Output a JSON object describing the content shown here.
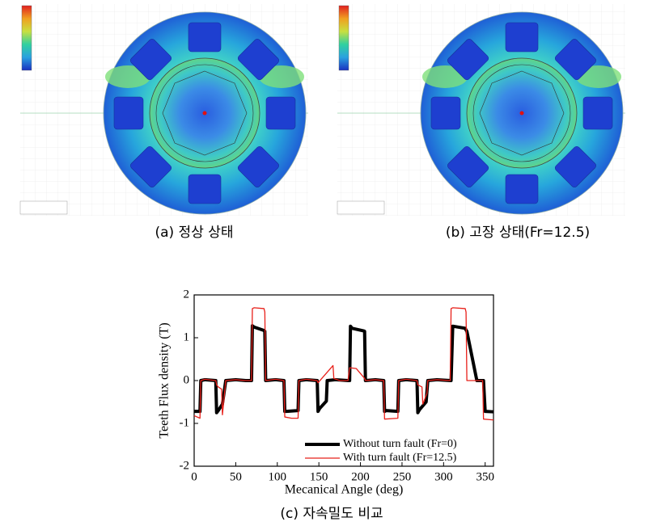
{
  "panels": [
    {
      "caption": "(a) 정상 상태"
    },
    {
      "caption": "(b) 고장 상태(Fr=12.5)"
    }
  ],
  "chart_data": {
    "type": "line",
    "caption": "(c) 자속밀도 비교",
    "xlabel": "Mecanical Angle (deg)",
    "ylabel": "Teeth Flux density (T)",
    "xlim": [
      0,
      360
    ],
    "xticks": [
      0,
      50,
      100,
      150,
      200,
      250,
      300,
      350
    ],
    "ylim": [
      -2,
      2
    ],
    "yticks": [
      -2,
      -1,
      0,
      1,
      2
    ],
    "legend": "lower right",
    "series": [
      {
        "name": "Without turn fault (Fr=0)",
        "color": "#000000",
        "width": 4,
        "x": [
          0,
          7,
          8,
          13,
          26,
          27,
          29,
          34,
          38,
          50,
          62,
          69,
          70,
          72,
          84,
          85,
          86,
          98,
          108,
          109,
          111,
          125,
          126,
          135,
          148,
          149,
          151,
          159,
          160,
          170,
          185,
          187,
          188,
          190,
          204,
          205,
          206,
          218,
          228,
          229,
          231,
          245,
          246,
          255,
          268,
          269,
          271,
          279,
          281,
          292,
          308,
          309,
          311,
          326,
          327,
          328,
          340,
          347,
          348,
          350,
          360
        ],
        "values": [
          -0.72,
          -0.72,
          0,
          0.02,
          0,
          -0.75,
          -0.7,
          -0.55,
          0,
          0.02,
          0,
          0,
          1.28,
          1.25,
          1.17,
          1.15,
          0,
          0.02,
          0,
          -0.72,
          -0.72,
          -0.7,
          0,
          0.02,
          0,
          -0.72,
          -0.65,
          -0.48,
          0,
          0.02,
          0,
          0,
          1.27,
          1.22,
          1.16,
          1.15,
          0,
          0.02,
          0,
          -0.72,
          -0.7,
          -0.72,
          0,
          0.02,
          0,
          -0.75,
          -0.68,
          -0.5,
          0,
          0.02,
          0,
          0,
          1.27,
          1.22,
          1.18,
          1.15,
          0,
          0,
          0,
          -0.72,
          -0.73
        ]
      },
      {
        "name": "With turn fault (Fr=12.5)",
        "color": "#e8201a",
        "width": 1.3,
        "x": [
          0,
          7,
          8,
          13,
          26,
          27,
          29,
          33,
          34,
          38,
          50,
          62,
          69,
          70,
          72,
          84,
          85,
          86,
          98,
          108,
          109,
          117,
          125,
          126,
          135,
          148,
          149,
          167,
          168,
          175,
          185,
          187,
          195,
          205,
          206,
          218,
          228,
          229,
          245,
          246,
          255,
          268,
          269,
          274,
          275,
          280,
          281,
          292,
          308,
          309,
          311,
          326,
          327,
          328,
          340,
          347,
          348,
          360
        ],
        "values": [
          -0.82,
          -0.88,
          0,
          0.03,
          0,
          -0.1,
          -0.15,
          -0.2,
          -0.8,
          0,
          0.02,
          0,
          0,
          1.68,
          1.7,
          1.68,
          1.6,
          0,
          0.03,
          0,
          -0.85,
          -0.88,
          -0.88,
          0,
          0.03,
          0,
          -0.05,
          0.35,
          0.05,
          0,
          0,
          0.3,
          0.28,
          0.05,
          0,
          0.02,
          0,
          -0.9,
          -0.88,
          0,
          0.03,
          0,
          -0.1,
          -0.15,
          -0.55,
          -0.3,
          0,
          0.02,
          0,
          1.68,
          1.7,
          1.68,
          1.6,
          0,
          0,
          0,
          -0.9,
          -0.92
        ]
      }
    ]
  }
}
